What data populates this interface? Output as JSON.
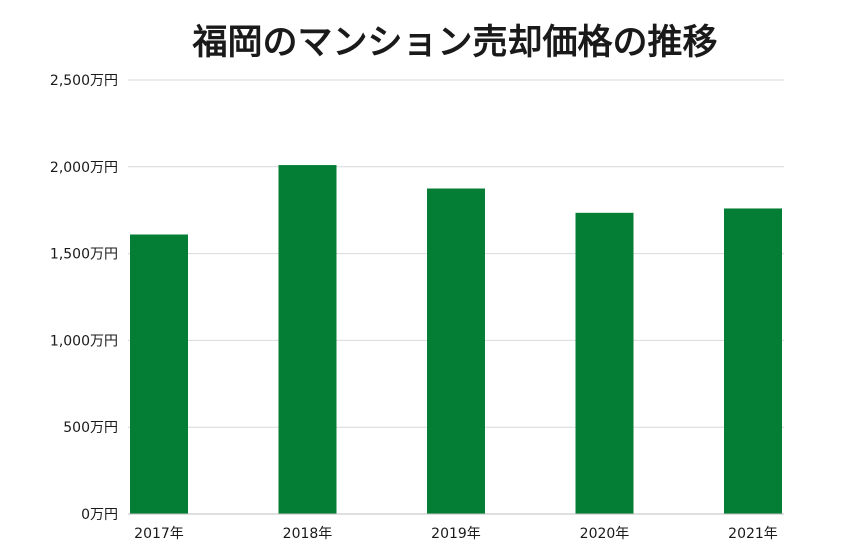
{
  "chart_data": {
    "type": "bar",
    "title": "福岡のマンション売却価格の推移",
    "xlabel": "",
    "ylabel": "",
    "categories": [
      "2017年",
      "2018年",
      "2019年",
      "2020年",
      "2021年"
    ],
    "values": [
      1610,
      2010,
      1875,
      1735,
      1760
    ],
    "unit": "万円",
    "ylim": [
      0,
      2500
    ],
    "yticks": [
      0,
      500,
      1000,
      1500,
      2000,
      2500
    ],
    "ytick_labels": [
      "0万円",
      "500万円",
      "1,000万円",
      "1,500万円",
      "2,000万円",
      "2,500万円"
    ],
    "grid": true,
    "legend": "none",
    "bar_color": "#047d35"
  }
}
